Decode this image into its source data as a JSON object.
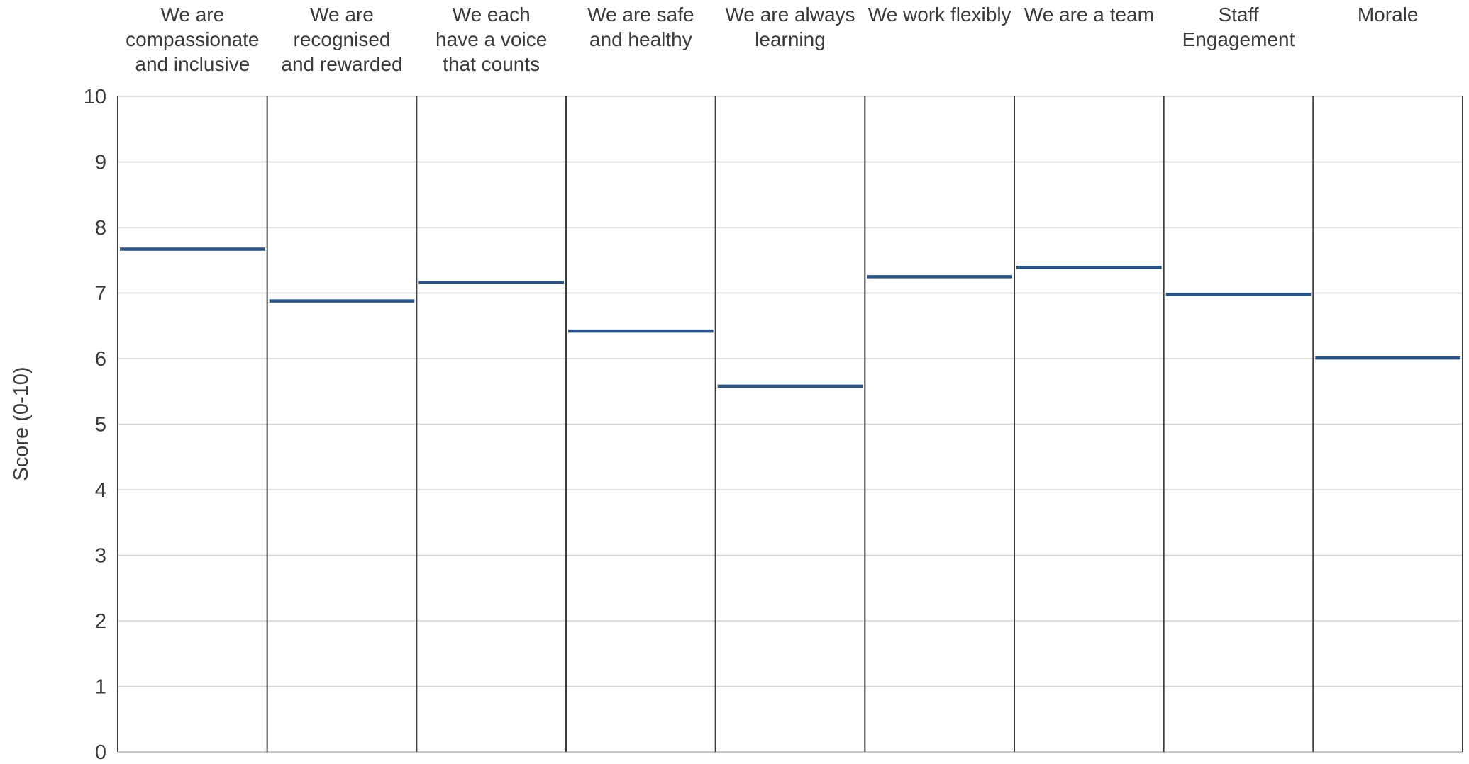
{
  "chart_data": {
    "type": "bar",
    "categories": [
      [
        "We are",
        "compassionate",
        "and inclusive"
      ],
      [
        "We are",
        "recognised",
        "and rewarded"
      ],
      [
        "We each",
        "have a voice",
        "that counts"
      ],
      [
        "We are safe",
        "and healthy"
      ],
      [
        "We are always",
        "learning"
      ],
      [
        "We work flexibly"
      ],
      [
        "We are a team"
      ],
      [
        "Staff",
        "Engagement"
      ],
      [
        "Morale"
      ]
    ],
    "values": [
      7.67,
      6.88,
      7.16,
      6.42,
      5.58,
      7.25,
      7.39,
      6.98,
      6.01
    ],
    "ylabel": "Score (0-10)",
    "ylim": [
      0,
      10
    ],
    "yticks": [
      "0",
      "1",
      "2",
      "3",
      "4",
      "5",
      "6",
      "7",
      "8",
      "9",
      "10"
    ],
    "grid": true,
    "colors": {
      "marker": "#2b5482",
      "grid": "#d6d6d6",
      "divider": "#3c3c3c",
      "text": "#3a3a3a"
    }
  }
}
